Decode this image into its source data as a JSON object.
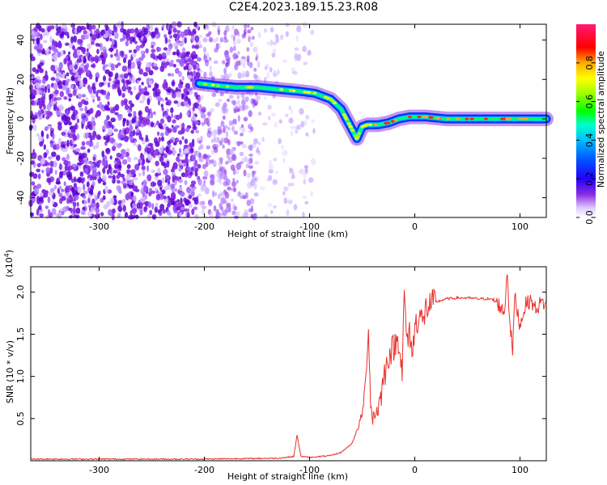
{
  "title": "C2E4.2023.189.15.23.R08",
  "chart_data": [
    {
      "type": "heatmap",
      "xlabel": "Height of straight line (km)",
      "ylabel": "Frequency (Hz)",
      "xlim": [
        -365,
        125
      ],
      "ylim": [
        -50,
        48
      ],
      "xticks": [
        -300,
        -200,
        -100,
        0,
        100
      ],
      "yticks": [
        -40,
        -20,
        0,
        20,
        40
      ],
      "colorbar": {
        "label": "Normalized spectral amplitude",
        "range": [
          0,
          1
        ],
        "ticks": [
          0.0,
          0.2,
          0.4,
          0.6,
          0.8
        ],
        "colors": [
          "#ffffff",
          "#e0c8ff",
          "#8a2be2",
          "#4400ff",
          "#0000ff",
          "#00bfff",
          "#00ffcc",
          "#00ff00",
          "#aaff00",
          "#ffff00",
          "#ffaa00",
          "#ff0000",
          "#ff0066",
          "#ff1493"
        ]
      },
      "ridge": {
        "x": [
          -205,
          -190,
          -170,
          -150,
          -130,
          -110,
          -95,
          -80,
          -70,
          -62,
          -55,
          -50,
          -45,
          -35,
          -25,
          -15,
          -5,
          10,
          30,
          60,
          90,
          125
        ],
        "y": [
          18,
          17,
          16,
          16,
          15,
          14,
          13,
          10,
          5,
          -3,
          -10,
          -4,
          -3,
          -3,
          -2,
          0,
          1,
          1,
          0,
          0,
          0,
          0
        ]
      }
    },
    {
      "type": "line",
      "xlabel": "Height of straight line (km)",
      "ylabel": "SNR (10 * v/v)",
      "scale_label": "(x10",
      "scale_exp": "4",
      "scale_close": ")",
      "xlim": [
        -365,
        125
      ],
      "ylim": [
        0,
        2.3
      ],
      "xticks": [
        -300,
        -200,
        -100,
        0,
        100
      ],
      "yticks": [
        0.5,
        1.0,
        1.5,
        2.0
      ],
      "yticklabels": [
        "0.5",
        "1.0",
        "1.5",
        "2.0"
      ],
      "color": "#e8302a",
      "x": [
        -365,
        -300,
        -200,
        -130,
        -115,
        -112,
        -108,
        -100,
        -90,
        -80,
        -70,
        -60,
        -55,
        -50,
        -47,
        -44,
        -42,
        -40,
        -36,
        -33,
        -30,
        -25,
        -20,
        -15,
        -12,
        -10,
        -7,
        -5,
        -2,
        0,
        5,
        8,
        10,
        15,
        20,
        25,
        30,
        40,
        50,
        60,
        70,
        75,
        80,
        85,
        88,
        90,
        93,
        95,
        100,
        105,
        110,
        115,
        120,
        125
      ],
      "y": [
        0.02,
        0.02,
        0.02,
        0.03,
        0.05,
        0.3,
        0.05,
        0.04,
        0.05,
        0.06,
        0.1,
        0.2,
        0.35,
        0.55,
        0.9,
        1.55,
        0.7,
        0.5,
        0.6,
        0.7,
        0.95,
        1.25,
        1.35,
        1.45,
        1.05,
        1.95,
        1.35,
        1.55,
        1.25,
        1.6,
        1.75,
        1.6,
        1.8,
        1.85,
        1.88,
        1.9,
        1.92,
        1.93,
        1.93,
        1.92,
        1.92,
        1.9,
        1.85,
        1.75,
        2.25,
        1.7,
        1.3,
        1.95,
        1.6,
        1.85,
        1.9,
        1.8,
        1.88,
        1.85
      ]
    }
  ]
}
